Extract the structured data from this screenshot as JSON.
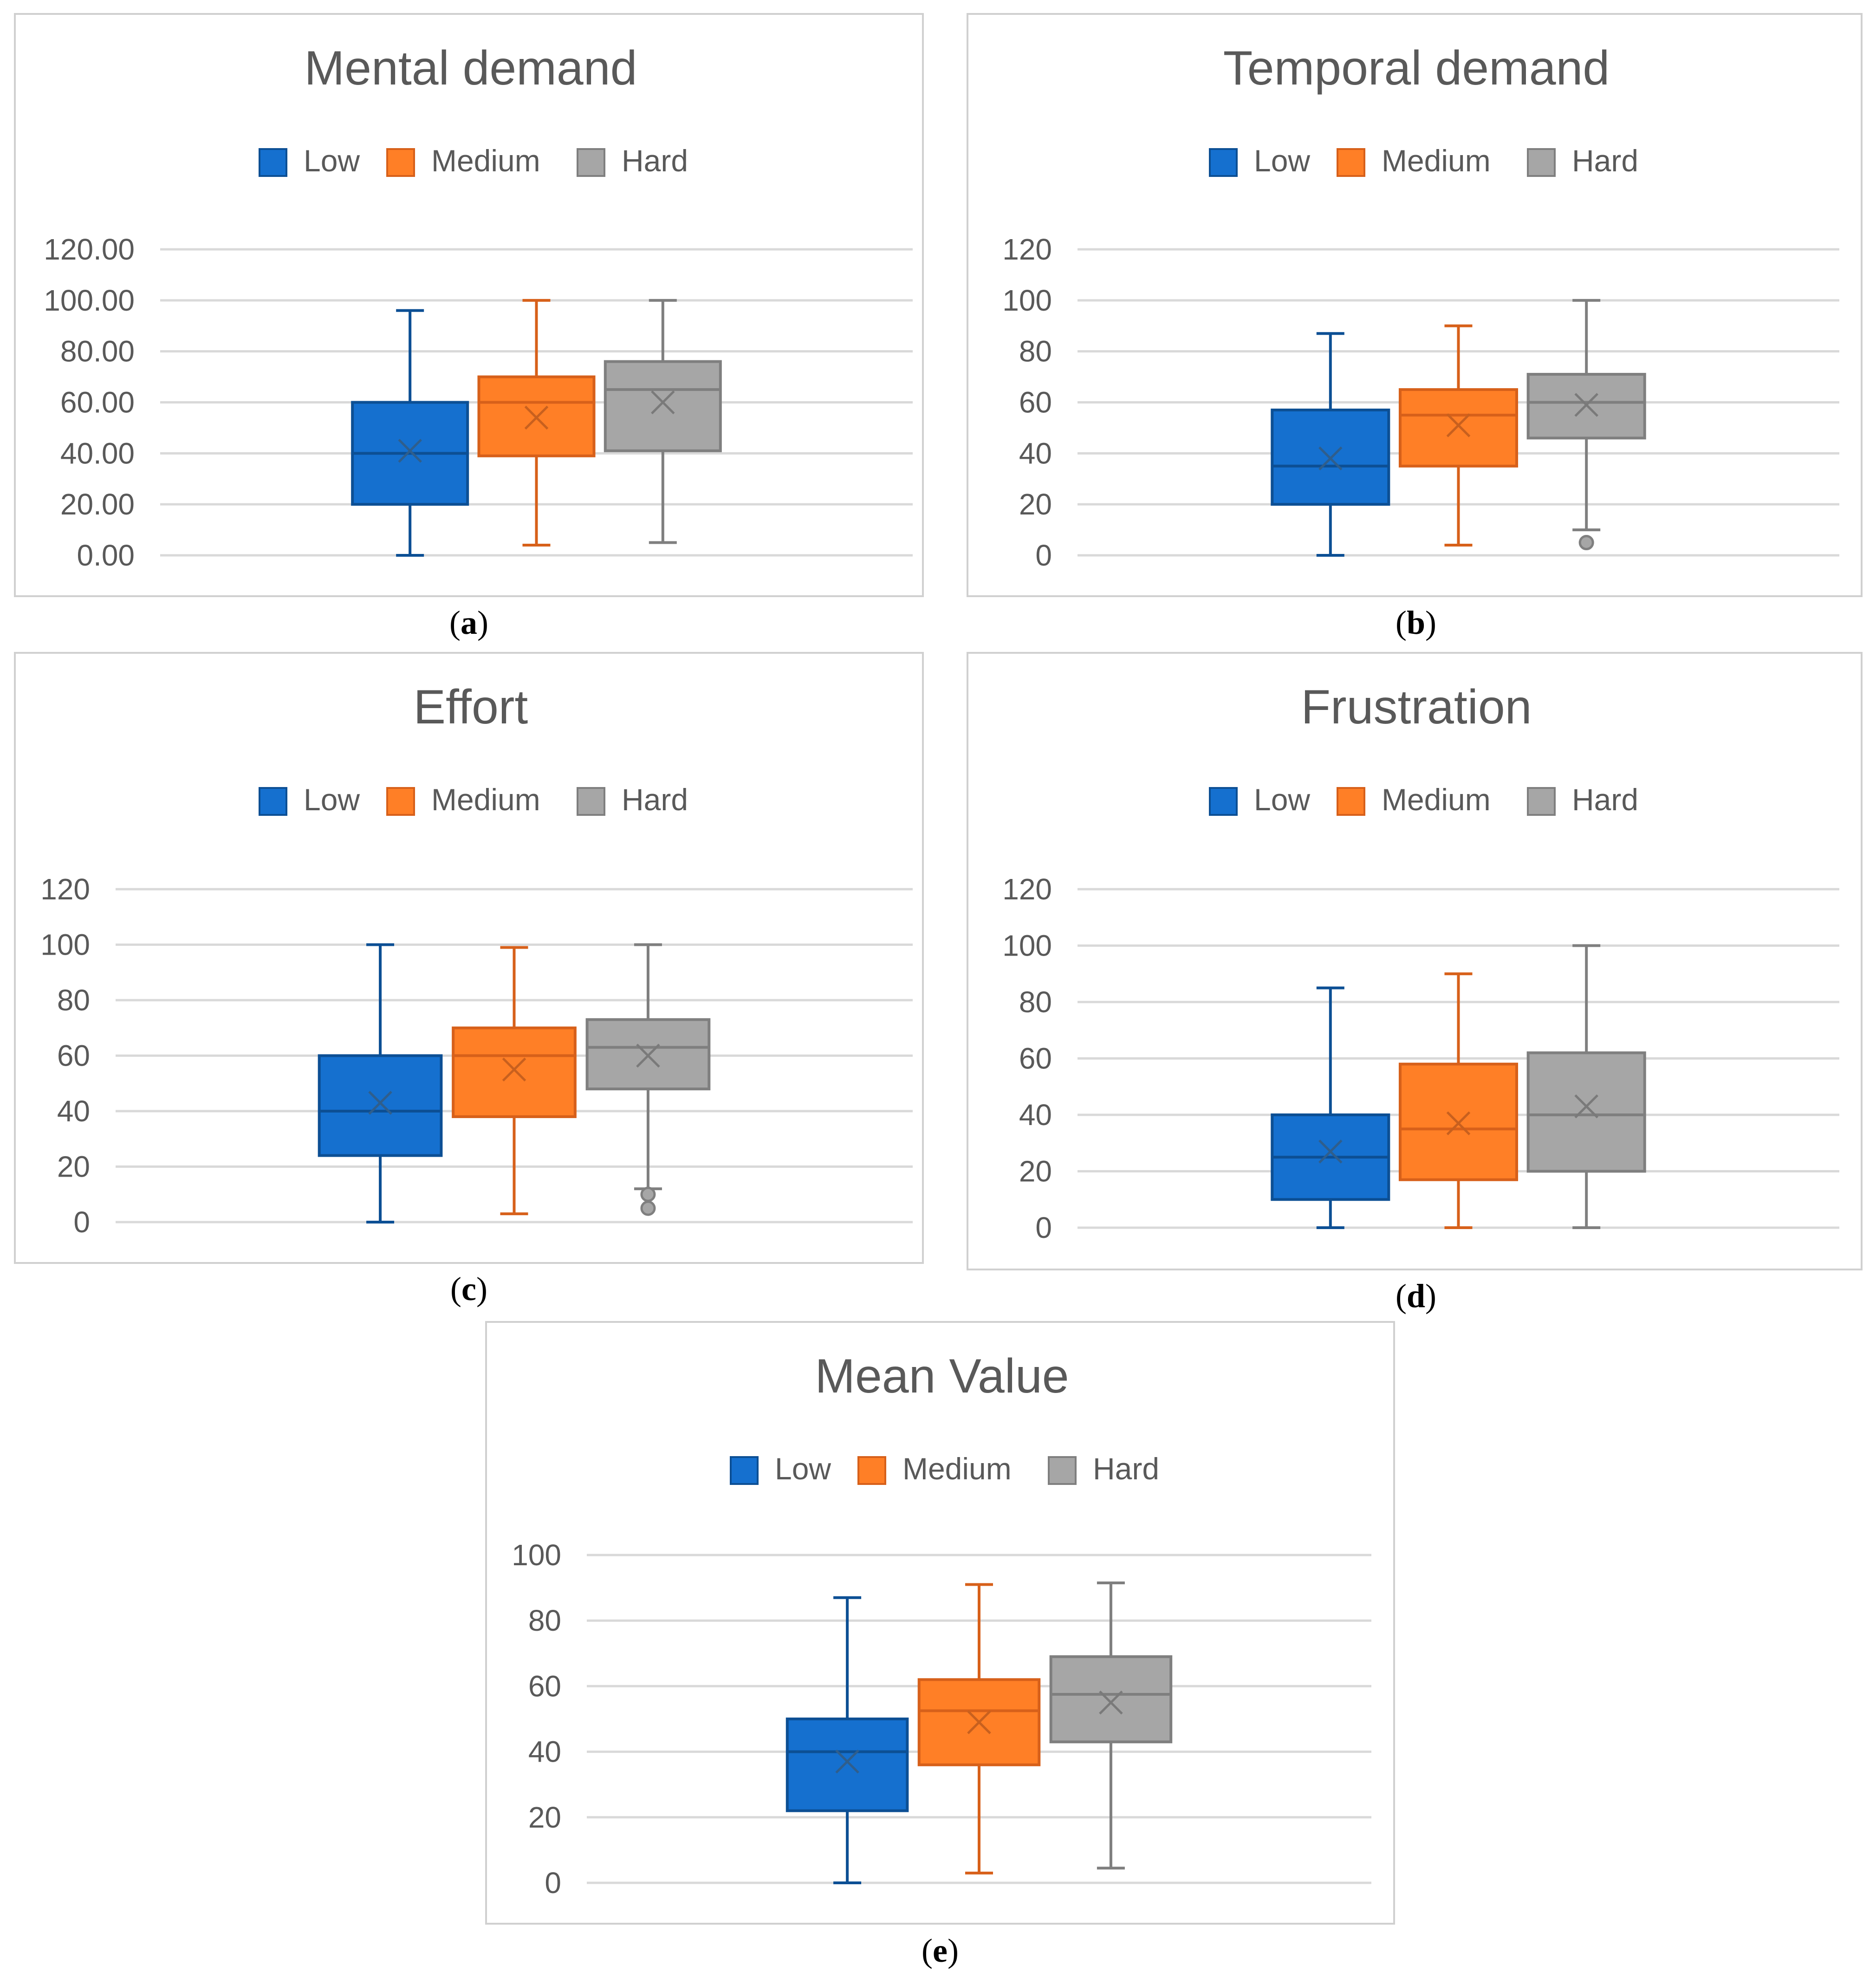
{
  "legend": {
    "entries": [
      "Low",
      "Medium",
      "Hard"
    ],
    "colors": {
      "Low": {
        "fill": "#1570cf",
        "stroke": "#0c4f94",
        "mean": "#2f5e8c"
      },
      "Medium": {
        "fill": "#ff7f26",
        "stroke": "#d7601a",
        "mean": "#c8601e"
      },
      "Hard": {
        "fill": "#a6a6a6",
        "stroke": "#7f7f7f",
        "mean": "#7a7a7a"
      }
    }
  },
  "chart_data": [
    {
      "id": "a",
      "type": "box",
      "title": "Mental demand",
      "caption": "a",
      "categories": [
        "Low",
        "Medium",
        "Hard"
      ],
      "yticks": [
        "0.00",
        "20.00",
        "40.00",
        "60.00",
        "80.00",
        "100.00",
        "120.00"
      ],
      "ylim": [
        0,
        120
      ],
      "series": [
        {
          "name": "Low",
          "min": 0,
          "q1": 20,
          "median": 40,
          "q3": 60,
          "max": 96,
          "mean": 41,
          "outliers": []
        },
        {
          "name": "Medium",
          "min": 4,
          "q1": 39,
          "median": 60,
          "q3": 70,
          "max": 100,
          "mean": 54,
          "outliers": []
        },
        {
          "name": "Hard",
          "min": 5,
          "q1": 41,
          "median": 65,
          "q3": 76,
          "max": 100,
          "mean": 60,
          "outliers": []
        }
      ]
    },
    {
      "id": "b",
      "type": "box",
      "title": "Temporal demand",
      "caption": "b",
      "categories": [
        "Low",
        "Medium",
        "Hard"
      ],
      "yticks": [
        "0",
        "20",
        "40",
        "60",
        "80",
        "100",
        "120"
      ],
      "ylim": [
        0,
        120
      ],
      "series": [
        {
          "name": "Low",
          "min": 0,
          "q1": 20,
          "median": 35,
          "q3": 57,
          "max": 87,
          "mean": 38,
          "outliers": []
        },
        {
          "name": "Medium",
          "min": 4,
          "q1": 35,
          "median": 55,
          "q3": 65,
          "max": 90,
          "mean": 51,
          "outliers": []
        },
        {
          "name": "Hard",
          "min": 10,
          "q1": 46,
          "median": 60,
          "q3": 71,
          "max": 100,
          "mean": 59,
          "outliers": [
            5
          ]
        }
      ]
    },
    {
      "id": "c",
      "type": "box",
      "title": "Effort",
      "caption": "c",
      "categories": [
        "Low",
        "Medium",
        "Hard"
      ],
      "yticks": [
        "0",
        "20",
        "40",
        "60",
        "80",
        "100",
        "120"
      ],
      "ylim": [
        0,
        120
      ],
      "series": [
        {
          "name": "Low",
          "min": 0,
          "q1": 24,
          "median": 40,
          "q3": 60,
          "max": 100,
          "mean": 43,
          "outliers": []
        },
        {
          "name": "Medium",
          "min": 3,
          "q1": 38,
          "median": 60,
          "q3": 70,
          "max": 99,
          "mean": 55,
          "outliers": []
        },
        {
          "name": "Hard",
          "min": 12,
          "q1": 48,
          "median": 63,
          "q3": 73,
          "max": 100,
          "mean": 60,
          "outliers": [
            10,
            5
          ]
        }
      ]
    },
    {
      "id": "d",
      "type": "box",
      "title": "Frustration",
      "caption": "d",
      "categories": [
        "Low",
        "Medium",
        "Hard"
      ],
      "yticks": [
        "0",
        "20",
        "40",
        "60",
        "80",
        "100",
        "120"
      ],
      "ylim": [
        0,
        120
      ],
      "series": [
        {
          "name": "Low",
          "min": 0,
          "q1": 10,
          "median": 25,
          "q3": 40,
          "max": 85,
          "mean": 27,
          "outliers": []
        },
        {
          "name": "Medium",
          "min": 0,
          "q1": 17,
          "median": 35,
          "q3": 58,
          "max": 90,
          "mean": 37,
          "outliers": []
        },
        {
          "name": "Hard",
          "min": 0,
          "q1": 20,
          "median": 40,
          "q3": 62,
          "max": 100,
          "mean": 43,
          "outliers": []
        }
      ]
    },
    {
      "id": "e",
      "type": "box",
      "title": "Mean Value",
      "caption": "e",
      "categories": [
        "Low",
        "Medium",
        "Hard"
      ],
      "yticks": [
        "0",
        "20",
        "40",
        "60",
        "80",
        "100"
      ],
      "ylim": [
        0,
        100
      ],
      "series": [
        {
          "name": "Low",
          "min": 0,
          "q1": 22,
          "median": 40,
          "q3": 50,
          "max": 87,
          "mean": 37,
          "outliers": []
        },
        {
          "name": "Medium",
          "min": 3,
          "q1": 36,
          "median": 52.5,
          "q3": 62,
          "max": 91,
          "mean": 49,
          "outliers": []
        },
        {
          "name": "Hard",
          "min": 4.5,
          "q1": 43,
          "median": 57.5,
          "q3": 69,
          "max": 91.5,
          "mean": 55,
          "outliers": []
        }
      ]
    }
  ]
}
